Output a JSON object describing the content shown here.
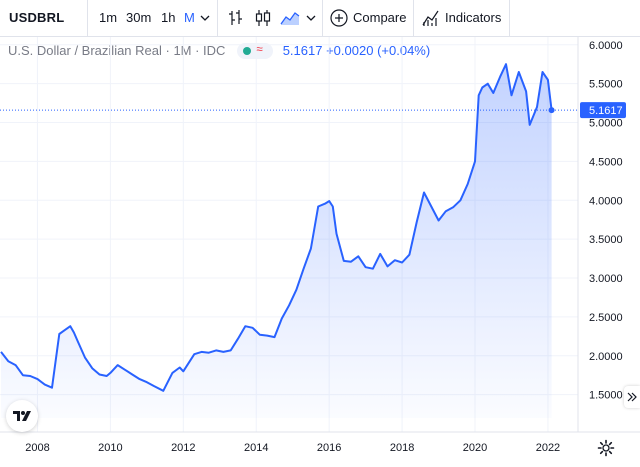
{
  "toolbar": {
    "symbol": "USDBRL",
    "intervals": [
      "1m",
      "30m",
      "1h",
      "M"
    ],
    "active_interval": "M",
    "compare_label": "Compare",
    "indicators_label": "Indicators"
  },
  "legend": {
    "title": "U.S. Dollar / Brazilian Real · 1M · IDC",
    "last": "5.1617",
    "change": "+0.0020",
    "change_pct": "(+0.04%)"
  },
  "colors": {
    "line": "#2962ff",
    "accent": "#2962ff",
    "grid": "#f0f3fa",
    "text": "#131722",
    "muted": "#787b86"
  },
  "chart_data": {
    "type": "area",
    "ylim": [
      1.2,
      6.1
    ],
    "yticks": [
      "6.0000",
      "5.5000",
      "5.0000",
      "4.5000",
      "4.0000",
      "3.5000",
      "3.0000",
      "2.5000",
      "2.0000",
      "1.5000"
    ],
    "xticks": [
      "2008",
      "2010",
      "2012",
      "2014",
      "2016",
      "2018",
      "2020",
      "2022"
    ],
    "last_value_label": "5.1617",
    "x": [
      2007.0,
      2007.2,
      2007.4,
      2007.6,
      2007.8,
      2008.0,
      2008.2,
      2008.4,
      2008.6,
      2008.75,
      2008.9,
      2009.0,
      2009.1,
      2009.3,
      2009.5,
      2009.7,
      2009.9,
      2010.0,
      2010.2,
      2010.4,
      2010.6,
      2010.8,
      2011.0,
      2011.2,
      2011.45,
      2011.7,
      2011.9,
      2012.0,
      2012.3,
      2012.5,
      2012.7,
      2012.9,
      2013.1,
      2013.3,
      2013.5,
      2013.7,
      2013.9,
      2014.1,
      2014.3,
      2014.5,
      2014.7,
      2014.9,
      2015.1,
      2015.3,
      2015.5,
      2015.7,
      2015.9,
      2016.0,
      2016.1,
      2016.2,
      2016.4,
      2016.6,
      2016.8,
      2017.0,
      2017.2,
      2017.4,
      2017.6,
      2017.8,
      2018.0,
      2018.2,
      2018.4,
      2018.6,
      2018.8,
      2019.0,
      2019.2,
      2019.4,
      2019.6,
      2019.8,
      2020.0,
      2020.1,
      2020.2,
      2020.35,
      2020.5,
      2020.7,
      2020.85,
      2021.0,
      2021.2,
      2021.4,
      2021.5,
      2021.7,
      2021.85,
      2022.0,
      2022.1
    ],
    "values": [
      2.05,
      1.93,
      1.88,
      1.75,
      1.74,
      1.7,
      1.63,
      1.59,
      2.28,
      2.33,
      2.38,
      2.3,
      2.19,
      1.98,
      1.84,
      1.76,
      1.74,
      1.78,
      1.88,
      1.82,
      1.76,
      1.7,
      1.66,
      1.61,
      1.55,
      1.78,
      1.85,
      1.8,
      2.02,
      2.05,
      2.04,
      2.07,
      2.05,
      2.07,
      2.22,
      2.38,
      2.36,
      2.27,
      2.26,
      2.24,
      2.48,
      2.65,
      2.85,
      3.12,
      3.38,
      3.92,
      3.96,
      3.99,
      3.92,
      3.57,
      3.22,
      3.21,
      3.28,
      3.14,
      3.12,
      3.31,
      3.15,
      3.23,
      3.2,
      3.3,
      3.72,
      4.1,
      3.92,
      3.74,
      3.86,
      3.91,
      4.0,
      4.21,
      4.5,
      5.35,
      5.45,
      5.5,
      5.38,
      5.6,
      5.75,
      5.35,
      5.65,
      5.4,
      4.97,
      5.2,
      5.65,
      5.55,
      5.16
    ]
  }
}
